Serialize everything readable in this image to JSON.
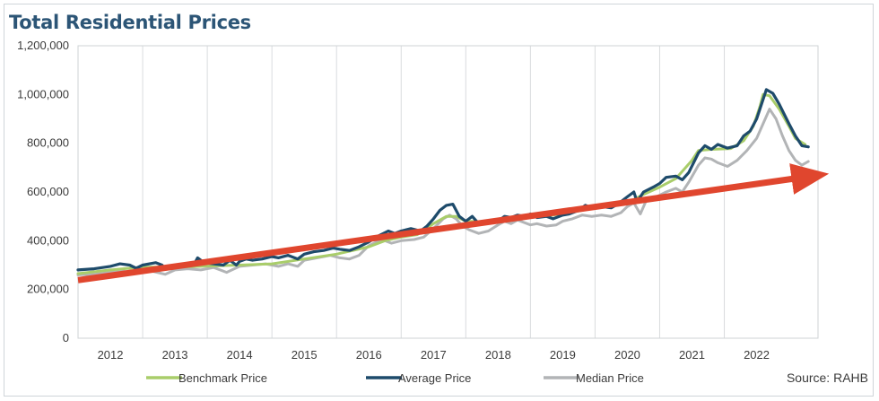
{
  "chart_data": {
    "type": "line",
    "title": "Total Residential Prices",
    "source": "Source: RAHB",
    "y_ticks": [
      "0",
      "200,000",
      "400,000",
      "600,000",
      "800,000",
      "1,000,000",
      "1,200,000"
    ],
    "x_ticks": [
      "2012",
      "2013",
      "2014",
      "2015",
      "2016",
      "2017",
      "2018",
      "2019",
      "2020",
      "2021",
      "2022"
    ],
    "ylim": [
      0,
      1200000
    ],
    "xlim": [
      2011.5,
      2022.95
    ],
    "grid": "vertical",
    "legend_position": "bottom",
    "series": [
      {
        "name": "Benchmark Price",
        "color": "#a9cd6a",
        "points": [
          [
            2011.5,
            265000
          ],
          [
            2012.0,
            280000
          ],
          [
            2012.5,
            292000
          ],
          [
            2013.0,
            292000
          ],
          [
            2013.5,
            296000
          ],
          [
            2014.0,
            300000
          ],
          [
            2014.5,
            305000
          ],
          [
            2015.0,
            325000
          ],
          [
            2015.5,
            345000
          ],
          [
            2016.0,
            375000
          ],
          [
            2016.25,
            400000
          ],
          [
            2016.5,
            415000
          ],
          [
            2016.75,
            425000
          ],
          [
            2017.0,
            470000
          ],
          [
            2017.2,
            500000
          ],
          [
            2017.35,
            500000
          ],
          [
            2017.5,
            480000
          ],
          [
            2017.75,
            478000
          ],
          [
            2018.0,
            485000
          ],
          [
            2018.5,
            495000
          ],
          [
            2019.0,
            510000
          ],
          [
            2019.5,
            535000
          ],
          [
            2020.0,
            555000
          ],
          [
            2020.25,
            590000
          ],
          [
            2020.5,
            620000
          ],
          [
            2020.75,
            655000
          ],
          [
            2021.0,
            730000
          ],
          [
            2021.1,
            770000
          ],
          [
            2021.3,
            775000
          ],
          [
            2021.6,
            778000
          ],
          [
            2021.8,
            810000
          ],
          [
            2021.95,
            870000
          ],
          [
            2022.05,
            950000
          ],
          [
            2022.1,
            1000000
          ],
          [
            2022.2,
            995000
          ],
          [
            2022.35,
            940000
          ],
          [
            2022.5,
            870000
          ],
          [
            2022.6,
            820000
          ],
          [
            2022.75,
            795000
          ]
        ]
      },
      {
        "name": "Average Price",
        "color": "#1e4b6b",
        "points": [
          [
            2011.5,
            280000
          ],
          [
            2011.75,
            285000
          ],
          [
            2012.0,
            295000
          ],
          [
            2012.15,
            305000
          ],
          [
            2012.3,
            300000
          ],
          [
            2012.4,
            287000
          ],
          [
            2012.5,
            300000
          ],
          [
            2012.7,
            310000
          ],
          [
            2012.8,
            300000
          ],
          [
            2012.85,
            285000
          ],
          [
            2013.0,
            290000
          ],
          [
            2013.15,
            300000
          ],
          [
            2013.3,
            305000
          ],
          [
            2013.35,
            330000
          ],
          [
            2013.45,
            310000
          ],
          [
            2013.6,
            305000
          ],
          [
            2013.75,
            300000
          ],
          [
            2013.85,
            320000
          ],
          [
            2013.95,
            300000
          ],
          [
            2014.0,
            315000
          ],
          [
            2014.1,
            325000
          ],
          [
            2014.2,
            320000
          ],
          [
            2014.35,
            325000
          ],
          [
            2014.5,
            335000
          ],
          [
            2014.6,
            330000
          ],
          [
            2014.75,
            340000
          ],
          [
            2014.9,
            325000
          ],
          [
            2015.0,
            345000
          ],
          [
            2015.15,
            355000
          ],
          [
            2015.3,
            360000
          ],
          [
            2015.45,
            370000
          ],
          [
            2015.55,
            365000
          ],
          [
            2015.7,
            360000
          ],
          [
            2015.85,
            375000
          ],
          [
            2016.0,
            395000
          ],
          [
            2016.15,
            420000
          ],
          [
            2016.3,
            440000
          ],
          [
            2016.4,
            430000
          ],
          [
            2016.5,
            440000
          ],
          [
            2016.65,
            450000
          ],
          [
            2016.8,
            440000
          ],
          [
            2016.9,
            460000
          ],
          [
            2017.0,
            490000
          ],
          [
            2017.1,
            525000
          ],
          [
            2017.2,
            545000
          ],
          [
            2017.3,
            550000
          ],
          [
            2017.4,
            500000
          ],
          [
            2017.5,
            480000
          ],
          [
            2017.6,
            500000
          ],
          [
            2017.7,
            470000
          ],
          [
            2017.85,
            475000
          ],
          [
            2018.0,
            480000
          ],
          [
            2018.1,
            500000
          ],
          [
            2018.2,
            495000
          ],
          [
            2018.3,
            505000
          ],
          [
            2018.4,
            500000
          ],
          [
            2018.5,
            510000
          ],
          [
            2018.6,
            495000
          ],
          [
            2018.75,
            500000
          ],
          [
            2018.85,
            490000
          ],
          [
            2019.0,
            505000
          ],
          [
            2019.1,
            510000
          ],
          [
            2019.25,
            525000
          ],
          [
            2019.35,
            545000
          ],
          [
            2019.45,
            535000
          ],
          [
            2019.6,
            540000
          ],
          [
            2019.75,
            535000
          ],
          [
            2019.85,
            550000
          ],
          [
            2020.0,
            580000
          ],
          [
            2020.1,
            600000
          ],
          [
            2020.15,
            560000
          ],
          [
            2020.25,
            600000
          ],
          [
            2020.4,
            620000
          ],
          [
            2020.5,
            635000
          ],
          [
            2020.6,
            660000
          ],
          [
            2020.75,
            665000
          ],
          [
            2020.85,
            650000
          ],
          [
            2020.95,
            680000
          ],
          [
            2021.1,
            760000
          ],
          [
            2021.2,
            790000
          ],
          [
            2021.3,
            775000
          ],
          [
            2021.4,
            795000
          ],
          [
            2021.55,
            780000
          ],
          [
            2021.7,
            790000
          ],
          [
            2021.8,
            830000
          ],
          [
            2021.9,
            850000
          ],
          [
            2022.0,
            900000
          ],
          [
            2022.1,
            980000
          ],
          [
            2022.15,
            1020000
          ],
          [
            2022.25,
            1005000
          ],
          [
            2022.35,
            960000
          ],
          [
            2022.5,
            880000
          ],
          [
            2022.6,
            830000
          ],
          [
            2022.7,
            790000
          ],
          [
            2022.8,
            785000
          ]
        ]
      },
      {
        "name": "Median Price",
        "color": "#b2b4b6",
        "points": [
          [
            2011.5,
            260000
          ],
          [
            2011.75,
            262000
          ],
          [
            2012.0,
            270000
          ],
          [
            2012.2,
            275000
          ],
          [
            2012.4,
            268000
          ],
          [
            2012.6,
            278000
          ],
          [
            2012.85,
            262000
          ],
          [
            2013.0,
            280000
          ],
          [
            2013.2,
            285000
          ],
          [
            2013.4,
            280000
          ],
          [
            2013.6,
            290000
          ],
          [
            2013.8,
            270000
          ],
          [
            2014.0,
            295000
          ],
          [
            2014.2,
            300000
          ],
          [
            2014.4,
            305000
          ],
          [
            2014.6,
            295000
          ],
          [
            2014.75,
            305000
          ],
          [
            2014.9,
            295000
          ],
          [
            2015.0,
            320000
          ],
          [
            2015.2,
            330000
          ],
          [
            2015.4,
            340000
          ],
          [
            2015.55,
            330000
          ],
          [
            2015.7,
            325000
          ],
          [
            2015.85,
            340000
          ],
          [
            2016.0,
            380000
          ],
          [
            2016.2,
            405000
          ],
          [
            2016.35,
            390000
          ],
          [
            2016.5,
            400000
          ],
          [
            2016.7,
            405000
          ],
          [
            2016.85,
            415000
          ],
          [
            2017.0,
            450000
          ],
          [
            2017.15,
            490000
          ],
          [
            2017.25,
            505000
          ],
          [
            2017.35,
            490000
          ],
          [
            2017.45,
            460000
          ],
          [
            2017.55,
            445000
          ],
          [
            2017.7,
            430000
          ],
          [
            2017.85,
            440000
          ],
          [
            2018.0,
            465000
          ],
          [
            2018.1,
            480000
          ],
          [
            2018.2,
            470000
          ],
          [
            2018.3,
            485000
          ],
          [
            2018.4,
            475000
          ],
          [
            2018.5,
            465000
          ],
          [
            2018.6,
            470000
          ],
          [
            2018.75,
            460000
          ],
          [
            2018.9,
            465000
          ],
          [
            2019.0,
            480000
          ],
          [
            2019.15,
            490000
          ],
          [
            2019.3,
            505000
          ],
          [
            2019.45,
            500000
          ],
          [
            2019.6,
            505000
          ],
          [
            2019.75,
            500000
          ],
          [
            2019.9,
            515000
          ],
          [
            2020.0,
            540000
          ],
          [
            2020.1,
            555000
          ],
          [
            2020.2,
            510000
          ],
          [
            2020.3,
            570000
          ],
          [
            2020.45,
            580000
          ],
          [
            2020.6,
            600000
          ],
          [
            2020.75,
            615000
          ],
          [
            2020.85,
            600000
          ],
          [
            2020.95,
            640000
          ],
          [
            2021.1,
            710000
          ],
          [
            2021.2,
            740000
          ],
          [
            2021.3,
            735000
          ],
          [
            2021.4,
            720000
          ],
          [
            2021.55,
            705000
          ],
          [
            2021.7,
            730000
          ],
          [
            2021.85,
            770000
          ],
          [
            2022.0,
            820000
          ],
          [
            2022.1,
            880000
          ],
          [
            2022.2,
            940000
          ],
          [
            2022.3,
            900000
          ],
          [
            2022.4,
            830000
          ],
          [
            2022.5,
            770000
          ],
          [
            2022.6,
            730000
          ],
          [
            2022.7,
            710000
          ],
          [
            2022.8,
            725000
          ]
        ]
      }
    ],
    "annotations": [
      {
        "type": "trend-arrow",
        "color": "#e0462e",
        "from": [
          2011.5,
          238000
        ],
        "to": [
          2022.85,
          665000
        ]
      }
    ]
  }
}
